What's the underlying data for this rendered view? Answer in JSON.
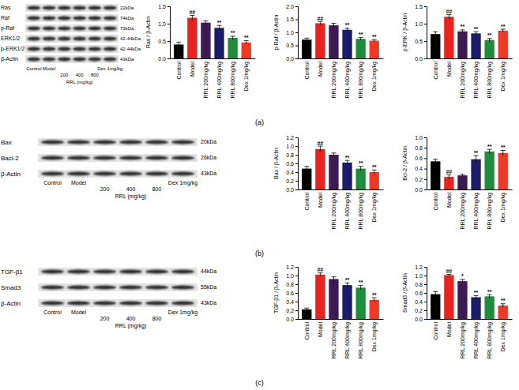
{
  "chart_data": [
    {
      "type": "bar",
      "ylabel": "Ras / β-Actin",
      "categories": [
        "Control",
        "Model",
        "RRL 200mg/kg",
        "RRL 400mg/kg",
        "RRL 800mg/kg",
        "Dex 1mg/kg"
      ],
      "values": [
        0.4,
        1.17,
        1.03,
        0.88,
        0.59,
        0.46
      ],
      "errors": [
        0.07,
        0.07,
        0.05,
        0.07,
        0.05,
        0.05
      ],
      "annotations": [
        null,
        "##",
        null,
        "**",
        "**",
        "**"
      ],
      "colors": [
        "#000000",
        "#e8231f",
        "#3f1a52",
        "#1b1d6b",
        "#1e8c3a",
        "#ee3a24"
      ],
      "ylim": [
        0,
        1.5
      ],
      "yticks": [
        {
          "value": 0,
          "label": "0.0"
        },
        0.5,
        {
          "value": 1,
          "label": "1.0"
        },
        1.5
      ]
    },
    {
      "type": "bar",
      "ylabel": "p-Raf / β-Actin",
      "categories": [
        "Control",
        "Model",
        "RRL 200mg/kg",
        "RRL 400mg/kg",
        "RRL 800mg/kg",
        "Dex 1mg/kg"
      ],
      "values": [
        0.72,
        1.35,
        1.27,
        1.1,
        0.75,
        0.68
      ],
      "errors": [
        0.06,
        0.07,
        0.08,
        0.06,
        0.05,
        0.04
      ],
      "annotations": [
        null,
        "##",
        null,
        "**",
        "**",
        "**"
      ],
      "colors": [
        "#000000",
        "#e8231f",
        "#3f1a52",
        "#1b1d6b",
        "#1e8c3a",
        "#ee3a24"
      ],
      "ylim": [
        0,
        2
      ],
      "yticks": [
        {
          "value": 0,
          "label": "0.0"
        },
        0.5,
        {
          "value": 1,
          "label": "1.0"
        },
        1.5,
        {
          "value": 2,
          "label": "2.0"
        }
      ]
    },
    {
      "type": "bar",
      "ylabel": "p-ERK / β-Actin",
      "categories": [
        "Control",
        "Model",
        "RRL 200mg/kg",
        "RRL 400mg/kg",
        "RRL 800mg/kg",
        "Dex 1mg/kg"
      ],
      "values": [
        0.7,
        1.2,
        0.78,
        0.72,
        0.53,
        0.8
      ],
      "errors": [
        0.07,
        0.06,
        0.04,
        0.05,
        0.04,
        0.04
      ],
      "annotations": [
        null,
        "##",
        "**",
        "**",
        "**",
        "**"
      ],
      "colors": [
        "#000000",
        "#e8231f",
        "#3f1a52",
        "#1b1d6b",
        "#1e8c3a",
        "#ee3a24"
      ],
      "ylim": [
        0,
        1.5
      ],
      "yticks": [
        {
          "value": 0,
          "label": "0.0"
        },
        0.5,
        {
          "value": 1,
          "label": "1.0"
        },
        1.5
      ]
    },
    {
      "type": "bar",
      "ylabel": "Bax / β-Actin",
      "categories": [
        "Control",
        "Model",
        "RRL 200mg/kg",
        "RRL 400mg/kg",
        "RRL 800mg/kg",
        "Dex 1mg/kg"
      ],
      "values": [
        0.48,
        0.93,
        0.8,
        0.62,
        0.48,
        0.4
      ],
      "errors": [
        0.05,
        0.07,
        0.04,
        0.05,
        0.05,
        0.05
      ],
      "annotations": [
        null,
        "##",
        null,
        "**",
        "**",
        "**"
      ],
      "colors": [
        "#000000",
        "#e8231f",
        "#3f1a52",
        "#1b1d6b",
        "#1e8c3a",
        "#ee3a24"
      ],
      "ylim": [
        0,
        1.2
      ],
      "yticks": [
        {
          "value": 0,
          "label": "0.0"
        },
        0.2,
        0.4,
        0.6,
        0.8,
        {
          "value": 1,
          "label": "1.0"
        },
        1.2
      ]
    },
    {
      "type": "bar",
      "ylabel": "Bcl-2 / β-Actin",
      "categories": [
        "Control",
        "Model",
        "RRL 200mg/kg",
        "RRL 400mg/kg",
        "RRL 800mg/kg",
        "Dex 1mg/kg"
      ],
      "values": [
        0.54,
        0.24,
        0.27,
        0.58,
        0.73,
        0.7
      ],
      "errors": [
        0.04,
        0.04,
        0.02,
        0.07,
        0.04,
        0.05
      ],
      "annotations": [
        null,
        "##",
        null,
        "**",
        "**",
        "**"
      ],
      "colors": [
        "#000000",
        "#e8231f",
        "#3f1a52",
        "#1b1d6b",
        "#1e8c3a",
        "#ee3a24"
      ],
      "ylim": [
        0,
        1
      ],
      "yticks": [
        {
          "value": 0,
          "label": "0.0"
        },
        0.2,
        0.4,
        0.6,
        0.8,
        {
          "value": 1,
          "label": "1.0"
        }
      ]
    },
    {
      "type": "bar",
      "ylabel": "TGF-β1 / β-Actin",
      "categories": [
        "Control",
        "Model",
        "RRL 200mg/kg",
        "RRL 400mg/kg",
        "RRL 800mg/kg",
        "Dex 1mg/kg"
      ],
      "values": [
        0.22,
        1.02,
        0.92,
        0.78,
        0.72,
        0.44
      ],
      "errors": [
        0.03,
        0.04,
        0.05,
        0.05,
        0.05,
        0.05
      ],
      "annotations": [
        null,
        "##",
        null,
        "**",
        "**",
        "**"
      ],
      "colors": [
        "#000000",
        "#e8231f",
        "#3f1a52",
        "#1b1d6b",
        "#1e8c3a",
        "#ee3a24"
      ],
      "ylim": [
        0,
        1.2
      ],
      "yticks": [
        {
          "value": 0,
          "label": "0.0"
        },
        0.2,
        0.4,
        0.6,
        0.8,
        {
          "value": 1,
          "label": "1.0"
        },
        1.2
      ]
    },
    {
      "type": "bar",
      "ylabel": "Smad3 / β-Actin",
      "categories": [
        "Control",
        "Model",
        "RRL 200mg/kg",
        "RRL 400mg/kg",
        "RRL 800mg/kg",
        "Dex 1mg/kg"
      ],
      "values": [
        0.57,
        1.01,
        0.87,
        0.5,
        0.52,
        0.31
      ],
      "errors": [
        0.06,
        0.02,
        0.04,
        0.04,
        0.04,
        0.04
      ],
      "annotations": [
        null,
        "##",
        "*",
        "**",
        "**",
        "**"
      ],
      "colors": [
        "#000000",
        "#e8231f",
        "#3f1a52",
        "#1b1d6b",
        "#1e8c3a",
        "#ee3a24"
      ],
      "ylim": [
        0,
        1.2
      ],
      "yticks": [
        {
          "value": 0,
          "label": "0.0"
        },
        0.2,
        0.4,
        0.6,
        0.8,
        {
          "value": 1,
          "label": "1.0"
        },
        1.2
      ]
    }
  ],
  "blots": [
    {
      "panel": "(a)",
      "bands": [
        {
          "name": "Ras",
          "size": "22kDa"
        },
        {
          "name": "Raf",
          "size": "74kDa"
        },
        {
          "name": "p-Raf",
          "size": "73kDa"
        },
        {
          "name": "ERK1/2",
          "size": "42-44kDa"
        },
        {
          "name": "p-ERK1/2",
          "size": "42-44kDa"
        },
        {
          "name": "β-Actin",
          "size": "43kDa"
        }
      ],
      "lanes": [
        "Control",
        "Model",
        "200",
        "400",
        "800",
        "Dex 1mg/kg"
      ],
      "group": "RRL (mg/kg)"
    },
    {
      "panel": "(b)",
      "bands": [
        {
          "name": "Bax",
          "size": "20kDa"
        },
        {
          "name": "Bacl-2",
          "size": "26kDa"
        },
        {
          "name": "β-Actin",
          "size": "43kDa"
        }
      ],
      "lanes": [
        "Control",
        "Model",
        "200",
        "400",
        "800",
        "Dex 1mg/kg"
      ],
      "group": "RRL (mg/kg)"
    },
    {
      "panel": "(c)",
      "bands": [
        {
          "name": "TGF-β1",
          "size": "44kDa"
        },
        {
          "name": "Smad3",
          "size": "55kDa"
        },
        {
          "name": "β-Actin",
          "size": "43kDa"
        }
      ],
      "lanes": [
        "Control",
        "Model",
        "200",
        "400",
        "800",
        "Dex 1mg/kg"
      ],
      "group": "RRL (mg/kg)"
    }
  ]
}
